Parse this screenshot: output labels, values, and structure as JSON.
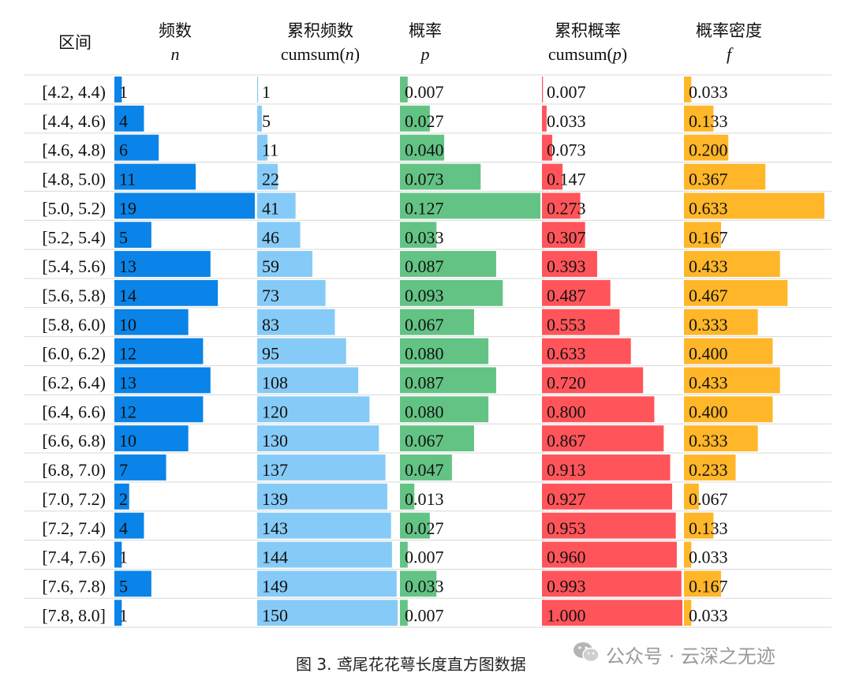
{
  "chart_data": {
    "type": "table",
    "headers": {
      "interval": "区间",
      "n": {
        "label": "频数",
        "symbol": "n"
      },
      "cumn": {
        "label": "累积频数",
        "pre": "cumsum(",
        "sym": "n",
        "post": ")"
      },
      "p": {
        "label": "概率",
        "symbol": "p"
      },
      "cump": {
        "label": "累积概率",
        "pre": "cumsum(",
        "sym": "p",
        "post": ")"
      },
      "f": {
        "label": "概率密度",
        "symbol": "f"
      }
    },
    "rows": [
      {
        "interval": "[4.2, 4.4)",
        "n": "1",
        "cumn": "1",
        "p": "0.007",
        "cump": "0.007",
        "f": "0.033"
      },
      {
        "interval": "[4.4, 4.6)",
        "n": "4",
        "cumn": "5",
        "p": "0.027",
        "cump": "0.033",
        "f": "0.133"
      },
      {
        "interval": "[4.6, 4.8)",
        "n": "6",
        "cumn": "11",
        "p": "0.040",
        "cump": "0.073",
        "f": "0.200"
      },
      {
        "interval": "[4.8, 5.0)",
        "n": "11",
        "cumn": "22",
        "p": "0.073",
        "cump": "0.147",
        "f": "0.367"
      },
      {
        "interval": "[5.0, 5.2)",
        "n": "19",
        "cumn": "41",
        "p": "0.127",
        "cump": "0.273",
        "f": "0.633"
      },
      {
        "interval": "[5.2, 5.4)",
        "n": "5",
        "cumn": "46",
        "p": "0.033",
        "cump": "0.307",
        "f": "0.167"
      },
      {
        "interval": "[5.4, 5.6)",
        "n": "13",
        "cumn": "59",
        "p": "0.087",
        "cump": "0.393",
        "f": "0.433"
      },
      {
        "interval": "[5.6, 5.8)",
        "n": "14",
        "cumn": "73",
        "p": "0.093",
        "cump": "0.487",
        "f": "0.467"
      },
      {
        "interval": "[5.8, 6.0)",
        "n": "10",
        "cumn": "83",
        "p": "0.067",
        "cump": "0.553",
        "f": "0.333"
      },
      {
        "interval": "[6.0, 6.2)",
        "n": "12",
        "cumn": "95",
        "p": "0.080",
        "cump": "0.633",
        "f": "0.400"
      },
      {
        "interval": "[6.2, 6.4)",
        "n": "13",
        "cumn": "108",
        "p": "0.087",
        "cump": "0.720",
        "f": "0.433"
      },
      {
        "interval": "[6.4, 6.6)",
        "n": "12",
        "cumn": "120",
        "p": "0.080",
        "cump": "0.800",
        "f": "0.400"
      },
      {
        "interval": "[6.6, 6.8)",
        "n": "10",
        "cumn": "130",
        "p": "0.067",
        "cump": "0.867",
        "f": "0.333"
      },
      {
        "interval": "[6.8, 7.0)",
        "n": "7",
        "cumn": "137",
        "p": "0.047",
        "cump": "0.913",
        "f": "0.233"
      },
      {
        "interval": "[7.0, 7.2)",
        "n": "2",
        "cumn": "139",
        "p": "0.013",
        "cump": "0.927",
        "f": "0.067"
      },
      {
        "interval": "[7.2, 7.4)",
        "n": "4",
        "cumn": "143",
        "p": "0.027",
        "cump": "0.953",
        "f": "0.133"
      },
      {
        "interval": "[7.4, 7.6)",
        "n": "1",
        "cumn": "144",
        "p": "0.007",
        "cump": "0.960",
        "f": "0.033"
      },
      {
        "interval": "[7.6, 7.8)",
        "n": "5",
        "cumn": "149",
        "p": "0.033",
        "cump": "0.993",
        "f": "0.167"
      },
      {
        "interval": "[7.8, 8.0]",
        "n": "1",
        "cumn": "150",
        "p": "0.007",
        "cump": "1.000",
        "f": "0.033"
      }
    ],
    "column_max": {
      "n": 19,
      "cumn": 150,
      "p": 0.127,
      "cump": 1.0,
      "f": 0.633
    },
    "colors": {
      "n": "#0a84e8",
      "cumn": "#86cbf7",
      "p": "#63c384",
      "cump": "#ff555a",
      "f": "#ffb628"
    }
  },
  "caption": "图 3. 鸢尾花花萼长度直方图数据",
  "watermark": "公众号 · 云深之无迹"
}
